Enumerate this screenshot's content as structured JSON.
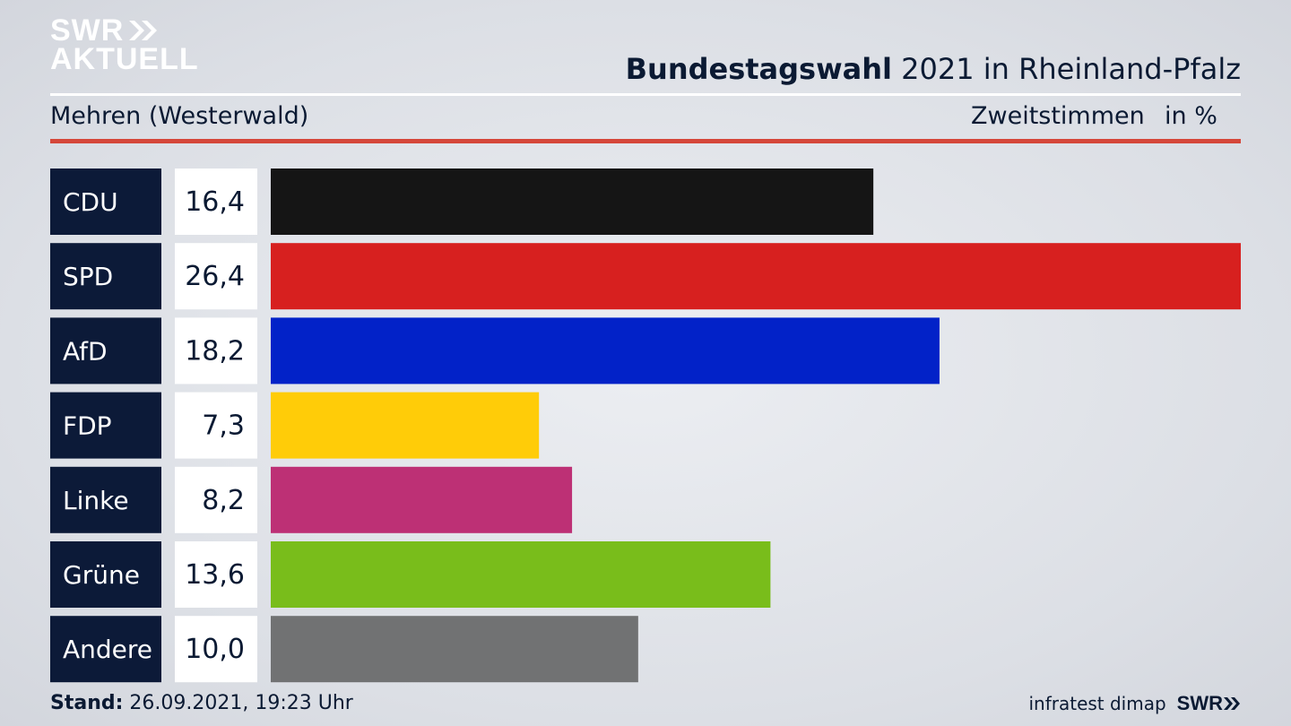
{
  "header": {
    "logo_line1": "SWR",
    "logo_line2": "AKTUELL",
    "title_bold": "Bundestagswahl",
    "title_rest": " 2021 in Rheinland-Pfalz",
    "subtitle": "Mehren (Westerwald)",
    "vote_type": "Zweitstimmen",
    "unit": "in %"
  },
  "footer": {
    "stand_label": "Stand:",
    "stand_value": " 26.09.2021, 19:23 Uhr",
    "source": "infratest dimap",
    "brand": "SWR"
  },
  "colors": {
    "label_box": "#0c1a38",
    "value_box": "#ffffff",
    "accent_rule": "#d5473a"
  },
  "chart_data": {
    "type": "bar",
    "orientation": "horizontal",
    "unit": "%",
    "categories": [
      "CDU",
      "SPD",
      "AfD",
      "FDP",
      "Linke",
      "Grüne",
      "Andere"
    ],
    "values": [
      16.4,
      26.4,
      18.2,
      7.3,
      8.2,
      13.6,
      10.0
    ],
    "value_labels": [
      "16,4",
      "26,4",
      "18,2",
      "7,3",
      "8,2",
      "13,6",
      "10,0"
    ],
    "bar_colors": [
      "#151515",
      "#d7201f",
      "#0222c8",
      "#ffcc08",
      "#bd3075",
      "#79bd1b",
      "#717273"
    ],
    "xlim": [
      0,
      26.4
    ],
    "grid": false,
    "legend": "none"
  }
}
